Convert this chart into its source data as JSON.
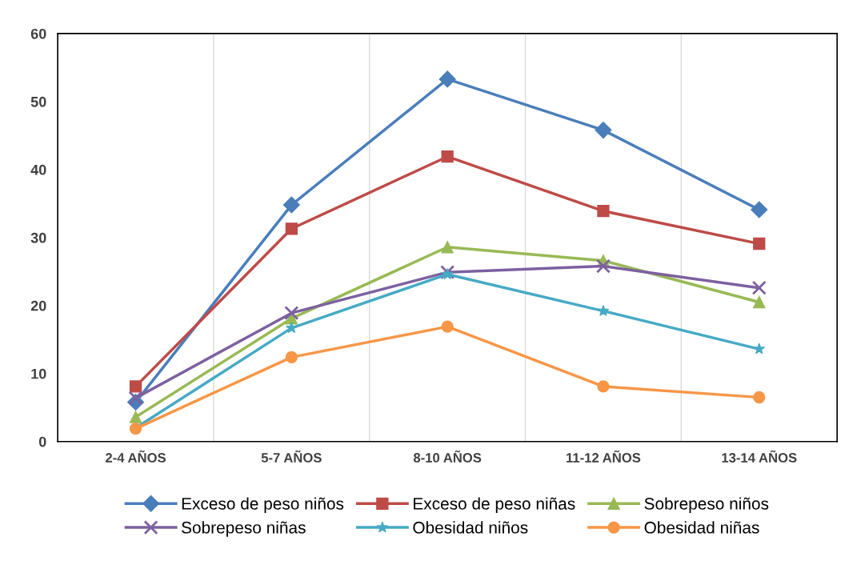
{
  "chart_data": {
    "type": "line",
    "categories": [
      "2-4 AÑOS",
      "5-7 AÑOS",
      "8-10 AÑOS",
      "11-12 AÑOS",
      "13-14 AÑOS"
    ],
    "series": [
      {
        "name": "Exceso de peso niños",
        "color": "#4a7ebb",
        "marker": "diamond",
        "values": [
          5.8,
          34.8,
          53.3,
          45.8,
          34.1
        ]
      },
      {
        "name": "Exceso de peso niñas",
        "color": "#be4b48",
        "marker": "square",
        "values": [
          8.1,
          31.3,
          41.9,
          33.9,
          29.1
        ]
      },
      {
        "name": "Sobrepeso niños",
        "color": "#98b954",
        "marker": "triangle",
        "values": [
          3.6,
          18.1,
          28.6,
          26.6,
          20.5
        ]
      },
      {
        "name": "Sobrepeso niñas",
        "color": "#7d60a0",
        "marker": "cross",
        "values": [
          6.4,
          18.9,
          24.9,
          25.8,
          22.6
        ]
      },
      {
        "name": "Obesidad niños",
        "color": "#46aac5",
        "marker": "star",
        "values": [
          2.0,
          16.7,
          24.6,
          19.2,
          13.6
        ]
      },
      {
        "name": "Obesidad niñas",
        "color": "#f79646",
        "marker": "circle",
        "values": [
          1.9,
          12.4,
          16.9,
          8.1,
          6.5
        ]
      }
    ],
    "ylim": [
      0,
      60
    ],
    "yticks": [
      0,
      10,
      20,
      30,
      40,
      50,
      60
    ],
    "grid": "x",
    "legend": "bottom",
    "line_style": "solid"
  }
}
